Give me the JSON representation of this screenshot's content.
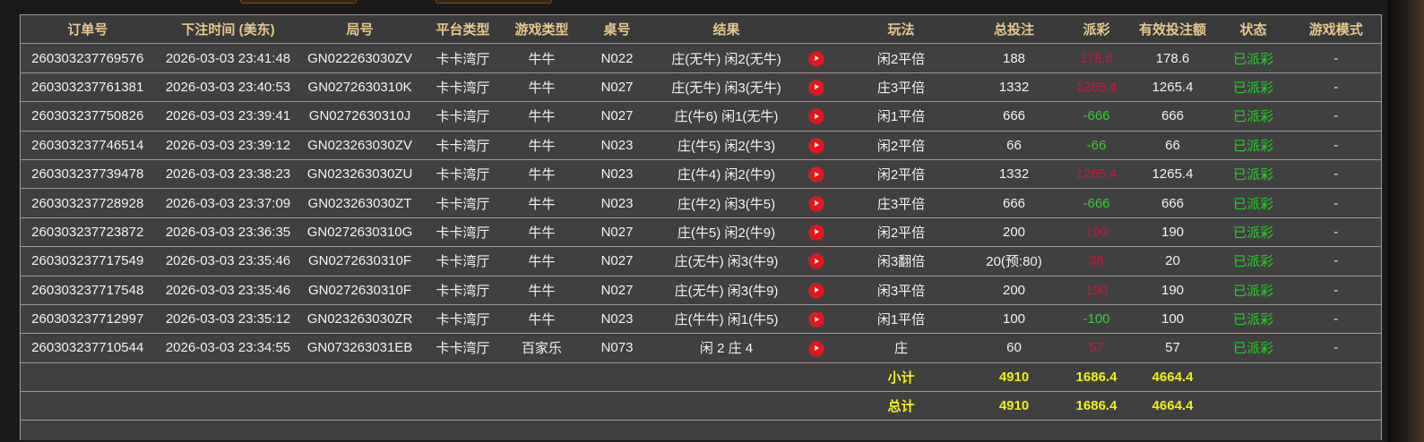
{
  "headers": [
    "订单号",
    "下注时间 (美东)",
    "局号",
    "平台类型",
    "游戏类型",
    "桌号",
    "结果",
    "",
    "玩法",
    "总投注",
    "派彩",
    "有效投注额",
    "状态",
    "游戏模式"
  ],
  "rows": [
    {
      "order": "260303237769576",
      "time": "2026-03-03 23:41:48",
      "round": "GN022263030ZV",
      "platform": "卡卡湾厅",
      "game": "牛牛",
      "table": "N022",
      "result": "庄(无牛) 闲2(无牛)",
      "play": "闲2平倍",
      "bet": "188",
      "payout": "178.6",
      "payout_sign": "pos",
      "valid": "178.6",
      "status": "已派彩",
      "mode": "-"
    },
    {
      "order": "260303237761381",
      "time": "2026-03-03 23:40:53",
      "round": "GN0272630310K",
      "platform": "卡卡湾厅",
      "game": "牛牛",
      "table": "N027",
      "result": "庄(无牛) 闲3(无牛)",
      "play": "庄3平倍",
      "bet": "1332",
      "payout": "1265.4",
      "payout_sign": "pos",
      "valid": "1265.4",
      "status": "已派彩",
      "mode": "-"
    },
    {
      "order": "260303237750826",
      "time": "2026-03-03 23:39:41",
      "round": "GN0272630310J",
      "platform": "卡卡湾厅",
      "game": "牛牛",
      "table": "N027",
      "result": "庄(牛6) 闲1(无牛)",
      "play": "闲1平倍",
      "bet": "666",
      "payout": "-666",
      "payout_sign": "neg",
      "valid": "666",
      "status": "已派彩",
      "mode": "-"
    },
    {
      "order": "260303237746514",
      "time": "2026-03-03 23:39:12",
      "round": "GN023263030ZV",
      "platform": "卡卡湾厅",
      "game": "牛牛",
      "table": "N023",
      "result": "庄(牛5) 闲2(牛3)",
      "play": "闲2平倍",
      "bet": "66",
      "payout": "-66",
      "payout_sign": "neg",
      "valid": "66",
      "status": "已派彩",
      "mode": "-"
    },
    {
      "order": "260303237739478",
      "time": "2026-03-03 23:38:23",
      "round": "GN023263030ZU",
      "platform": "卡卡湾厅",
      "game": "牛牛",
      "table": "N023",
      "result": "庄(牛4) 闲2(牛9)",
      "play": "闲2平倍",
      "bet": "1332",
      "payout": "1265.4",
      "payout_sign": "pos",
      "valid": "1265.4",
      "status": "已派彩",
      "mode": "-"
    },
    {
      "order": "260303237728928",
      "time": "2026-03-03 23:37:09",
      "round": "GN023263030ZT",
      "platform": "卡卡湾厅",
      "game": "牛牛",
      "table": "N023",
      "result": "庄(牛2) 闲3(牛5)",
      "play": "庄3平倍",
      "bet": "666",
      "payout": "-666",
      "payout_sign": "neg",
      "valid": "666",
      "status": "已派彩",
      "mode": "-"
    },
    {
      "order": "260303237723872",
      "time": "2026-03-03 23:36:35",
      "round": "GN0272630310G",
      "platform": "卡卡湾厅",
      "game": "牛牛",
      "table": "N027",
      "result": "庄(牛5) 闲2(牛9)",
      "play": "闲2平倍",
      "bet": "200",
      "payout": "190",
      "payout_sign": "pos",
      "valid": "190",
      "status": "已派彩",
      "mode": "-"
    },
    {
      "order": "260303237717549",
      "time": "2026-03-03 23:35:46",
      "round": "GN0272630310F",
      "platform": "卡卡湾厅",
      "game": "牛牛",
      "table": "N027",
      "result": "庄(无牛) 闲3(牛9)",
      "play": "闲3翻倍",
      "bet": "20(预:80)",
      "payout": "38",
      "payout_sign": "pos",
      "valid": "20",
      "status": "已派彩",
      "mode": "-"
    },
    {
      "order": "260303237717548",
      "time": "2026-03-03 23:35:46",
      "round": "GN0272630310F",
      "platform": "卡卡湾厅",
      "game": "牛牛",
      "table": "N027",
      "result": "庄(无牛) 闲3(牛9)",
      "play": "闲3平倍",
      "bet": "200",
      "payout": "190",
      "payout_sign": "pos",
      "valid": "190",
      "status": "已派彩",
      "mode": "-"
    },
    {
      "order": "260303237712997",
      "time": "2026-03-03 23:35:12",
      "round": "GN023263030ZR",
      "platform": "卡卡湾厅",
      "game": "牛牛",
      "table": "N023",
      "result": "庄(牛牛) 闲1(牛5)",
      "play": "闲1平倍",
      "bet": "100",
      "payout": "-100",
      "payout_sign": "neg",
      "valid": "100",
      "status": "已派彩",
      "mode": "-"
    },
    {
      "order": "260303237710544",
      "time": "2026-03-03 23:34:55",
      "round": "GN073263031EB",
      "platform": "卡卡湾厅",
      "game": "百家乐",
      "table": "N073",
      "result": "闲 2 庄 4",
      "play": "庄",
      "bet": "60",
      "payout": "57",
      "payout_sign": "pos",
      "valid": "57",
      "status": "已派彩",
      "mode": "-"
    }
  ],
  "subtotal": {
    "label": "小计",
    "bet": "4910",
    "payout": "1686.4",
    "valid": "4664.4"
  },
  "total": {
    "label": "总计",
    "bet": "4910",
    "payout": "1686.4",
    "valid": "4664.4"
  },
  "colors": {
    "header": "#e8c88a",
    "payout_positive": "#c8163c",
    "payout_negative": "#31d131",
    "status": "#22d322",
    "summary": "#f0f016"
  },
  "icons": {
    "replay": "play-circle-icon"
  }
}
